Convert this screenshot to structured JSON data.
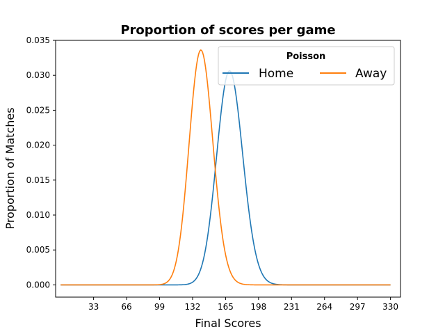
{
  "chart_data": {
    "type": "line",
    "title": "Proportion of scores per game",
    "xlabel": "Final Scores",
    "ylabel": "Proportion of Matches",
    "xlim": [
      -5,
      340
    ],
    "ylim": [
      -0.00175,
      0.035
    ],
    "xticks": [
      33,
      66,
      99,
      132,
      165,
      198,
      231,
      264,
      297,
      330
    ],
    "yticks": [
      0.0,
      0.005,
      0.01,
      0.015,
      0.02,
      0.025,
      0.03,
      0.035
    ],
    "ytick_labels": [
      "0.000",
      "0.005",
      "0.010",
      "0.015",
      "0.020",
      "0.025",
      "0.030",
      "0.035"
    ],
    "grid": false,
    "legend": {
      "title": "Poisson",
      "position": "top-right",
      "columns": 2
    },
    "x_range": [
      0,
      330
    ],
    "series": [
      {
        "name": "Home",
        "color": "#1f77b4",
        "distribution": "poisson",
        "lambda": 169.5,
        "peak": 0.0306
      },
      {
        "name": "Away",
        "color": "#ff7f0e",
        "distribution": "poisson",
        "lambda": 140.8,
        "peak": 0.0336
      }
    ]
  }
}
